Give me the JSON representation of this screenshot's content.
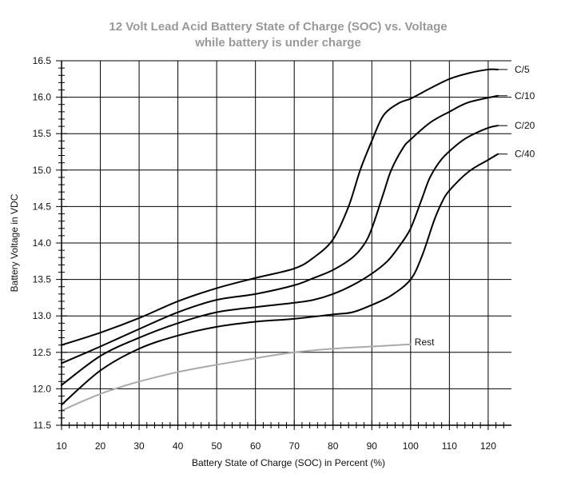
{
  "chart_data": {
    "type": "line",
    "title_lines": [
      "12 Volt Lead Acid Battery State of Charge (SOC) vs. Voltage",
      "while battery is under charge"
    ],
    "xlabel": "Battery State of Charge (SOC) in Percent (%)",
    "ylabel": "Battery Voltage in VDC",
    "xlim": [
      10,
      126
    ],
    "ylim": [
      11.5,
      16.5
    ],
    "x_ticks": [
      10,
      20,
      30,
      40,
      50,
      60,
      70,
      80,
      90,
      100,
      110,
      120
    ],
    "y_ticks": [
      "11.5",
      "12.0",
      "12.5",
      "13.0",
      "13.5",
      "14.0",
      "14.5",
      "15.0",
      "15.5",
      "16.0",
      "16.5"
    ],
    "grid": true,
    "colors": {
      "series": "#000000",
      "rest": "#aaaaaa",
      "title": "#999999",
      "grid": "#000000"
    },
    "series": [
      {
        "name": "C/5",
        "x": [
          10,
          20,
          30,
          40,
          50,
          60,
          70,
          75,
          80,
          84,
          87,
          90,
          93,
          97,
          100,
          105,
          110,
          115,
          120,
          122.5
        ],
        "y": [
          12.6,
          12.77,
          12.97,
          13.2,
          13.38,
          13.52,
          13.65,
          13.8,
          14.05,
          14.5,
          15.0,
          15.4,
          15.75,
          15.92,
          15.98,
          16.12,
          16.25,
          16.33,
          16.38,
          16.38
        ]
      },
      {
        "name": "C/10",
        "x": [
          10,
          20,
          30,
          40,
          50,
          60,
          70,
          75,
          80,
          85,
          88,
          90,
          93,
          95,
          98,
          100,
          105,
          110,
          115,
          122.5
        ],
        "y": [
          12.35,
          12.58,
          12.82,
          13.05,
          13.22,
          13.3,
          13.42,
          13.52,
          13.63,
          13.8,
          13.98,
          14.2,
          14.68,
          15.0,
          15.3,
          15.42,
          15.65,
          15.8,
          15.93,
          16.02
        ]
      },
      {
        "name": "C/20",
        "x": [
          10,
          20,
          30,
          40,
          50,
          60,
          65,
          70,
          75,
          80,
          85,
          90,
          94,
          97,
          100,
          103,
          105,
          108,
          112,
          115,
          120,
          122.5
        ],
        "y": [
          12.05,
          12.45,
          12.7,
          12.9,
          13.05,
          13.12,
          13.15,
          13.18,
          13.22,
          13.3,
          13.42,
          13.58,
          13.75,
          13.95,
          14.2,
          14.62,
          14.9,
          15.15,
          15.35,
          15.46,
          15.58,
          15.61
        ]
      },
      {
        "name": "C/40",
        "x": [
          10,
          20,
          30,
          40,
          50,
          60,
          70,
          80,
          85,
          90,
          95,
          100,
          103,
          106,
          108,
          110,
          115,
          120,
          122.5
        ],
        "y": [
          11.78,
          12.25,
          12.55,
          12.73,
          12.85,
          12.92,
          12.96,
          13.02,
          13.05,
          13.15,
          13.28,
          13.5,
          13.83,
          14.3,
          14.55,
          14.72,
          14.98,
          15.14,
          15.22
        ]
      },
      {
        "name": "Rest",
        "x": [
          10,
          15,
          20,
          25,
          30,
          40,
          50,
          60,
          70,
          80,
          90,
          100
        ],
        "y": [
          11.7,
          11.82,
          11.93,
          12.02,
          12.1,
          12.23,
          12.33,
          12.42,
          12.5,
          12.55,
          12.58,
          12.61
        ]
      }
    ]
  }
}
